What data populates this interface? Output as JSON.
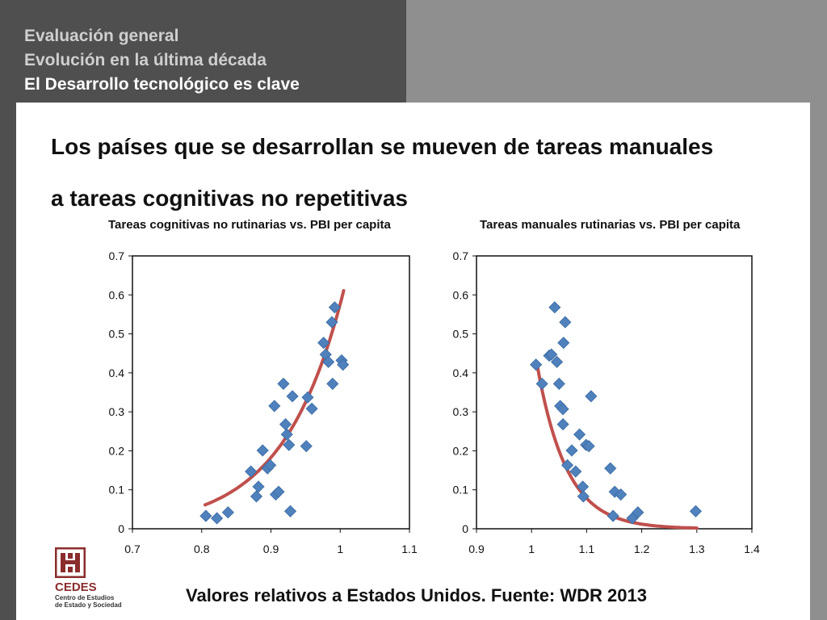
{
  "nav": {
    "item1": "Evaluación general",
    "item2": "Evolución en la última década",
    "item3": "El Desarrollo tecnológico es clave"
  },
  "heading": {
    "line1": "Los países que se desarrollan se mueven de tareas manuales",
    "line2": "a tareas cognitivas no repetitivas"
  },
  "source": "Valores relativos a Estados Unidos. Fuente: WDR 2013",
  "logo": {
    "name": "CEDES",
    "sub1": "Centro de Estudios",
    "sub2": "de Estado y Sociedad"
  },
  "colors": {
    "marker": "#4f81bd",
    "trend": "#c0504d"
  },
  "chart_data": [
    {
      "type": "scatter",
      "title": "Tareas cognitivas no rutinarias vs. PBI per capita",
      "xlim": [
        0.7,
        1.1
      ],
      "ylim": [
        0,
        0.7
      ],
      "xticks": [
        "0.7",
        "0.8",
        "0.9",
        "1",
        "1.1"
      ],
      "yticks": [
        "0",
        "0.1",
        "0.2",
        "0.3",
        "0.4",
        "0.5",
        "0.6",
        "0.7"
      ],
      "points": [
        [
          0.806,
          0.033
        ],
        [
          0.822,
          0.027
        ],
        [
          0.838,
          0.042
        ],
        [
          0.871,
          0.147
        ],
        [
          0.879,
          0.083
        ],
        [
          0.882,
          0.108
        ],
        [
          0.888,
          0.201
        ],
        [
          0.895,
          0.155
        ],
        [
          0.899,
          0.163
        ],
        [
          0.905,
          0.315
        ],
        [
          0.907,
          0.088
        ],
        [
          0.911,
          0.095
        ],
        [
          0.918,
          0.372
        ],
        [
          0.921,
          0.268
        ],
        [
          0.923,
          0.242
        ],
        [
          0.926,
          0.215
        ],
        [
          0.928,
          0.045
        ],
        [
          0.931,
          0.34
        ],
        [
          0.951,
          0.212
        ],
        [
          0.953,
          0.337
        ],
        [
          0.959,
          0.308
        ],
        [
          0.976,
          0.477
        ],
        [
          0.979,
          0.447
        ],
        [
          0.983,
          0.428
        ],
        [
          0.988,
          0.53
        ],
        [
          0.989,
          0.372
        ],
        [
          0.992,
          0.568
        ],
        [
          1.002,
          0.432
        ],
        [
          1.004,
          0.421
        ]
      ],
      "trend": {
        "type": "exponential",
        "a": 5.9e-06,
        "b": 11.49,
        "x_range": [
          0.805,
          1.005
        ]
      }
    },
    {
      "type": "scatter",
      "title": "Tareas manuales rutinarias vs. PBI per capita",
      "xlim": [
        0.9,
        1.4
      ],
      "ylim": [
        0,
        0.7
      ],
      "xticks": [
        "0.9",
        "1",
        "1.1",
        "1.2",
        "1.3",
        "1.4"
      ],
      "yticks": [
        "0",
        "0.1",
        "0.2",
        "0.3",
        "0.4",
        "0.5",
        "0.6",
        "0.7"
      ],
      "points": [
        [
          1.008,
          0.421
        ],
        [
          1.019,
          0.372
        ],
        [
          1.032,
          0.444
        ],
        [
          1.036,
          0.447
        ],
        [
          1.042,
          0.568
        ],
        [
          1.046,
          0.428
        ],
        [
          1.05,
          0.372
        ],
        [
          1.052,
          0.315
        ],
        [
          1.057,
          0.307
        ],
        [
          1.057,
          0.268
        ],
        [
          1.058,
          0.477
        ],
        [
          1.061,
          0.53
        ],
        [
          1.065,
          0.163
        ],
        [
          1.073,
          0.201
        ],
        [
          1.08,
          0.147
        ],
        [
          1.087,
          0.242
        ],
        [
          1.093,
          0.108
        ],
        [
          1.094,
          0.083
        ],
        [
          1.099,
          0.215
        ],
        [
          1.104,
          0.212
        ],
        [
          1.108,
          0.34
        ],
        [
          1.143,
          0.155
        ],
        [
          1.148,
          0.033
        ],
        [
          1.151,
          0.095
        ],
        [
          1.162,
          0.088
        ],
        [
          1.183,
          0.027
        ],
        [
          1.193,
          0.042
        ],
        [
          1.298,
          0.045
        ]
      ],
      "trend": {
        "type": "exponential",
        "a": 70700000.0,
        "b": -18.75,
        "x_range": [
          1.01,
          1.3
        ]
      }
    }
  ]
}
